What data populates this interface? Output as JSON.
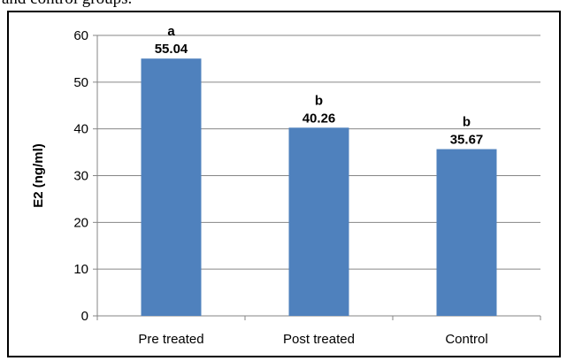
{
  "caption": {
    "fragment": "and control groups."
  },
  "chart_data": {
    "type": "bar",
    "title": "",
    "xlabel": "",
    "ylabel": "E2 (ng/ml)",
    "ylim": [
      0,
      60
    ],
    "yticks": [
      0,
      10,
      20,
      30,
      40,
      50,
      60
    ],
    "grid": true,
    "legend": "none",
    "categories": [
      "Pre treated",
      "Post treated",
      "Control"
    ],
    "values": [
      55.04,
      40.26,
      35.67
    ],
    "value_labels": [
      "55.04",
      "40.26",
      "35.67"
    ],
    "significance_letters": [
      "a",
      "b",
      "b"
    ],
    "bar_color": "#4f81bd",
    "grid_color": "#868686"
  }
}
